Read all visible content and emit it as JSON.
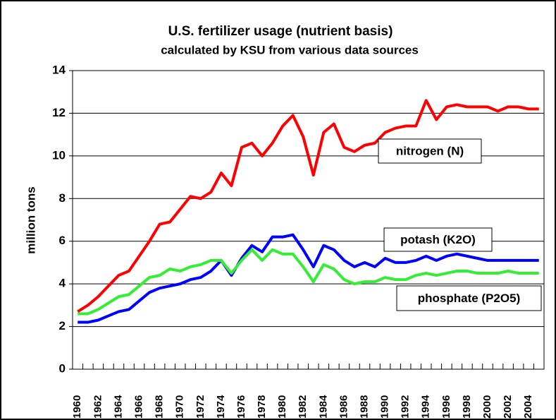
{
  "chart_data": {
    "type": "line",
    "title": "U.S. fertilizer usage (nutrient basis)",
    "subtitle": "calculated by KSU from various data sources",
    "y_label": "million tons",
    "categories": [
      "1960",
      null,
      "1962",
      null,
      "1964",
      null,
      "1966",
      null,
      "1968",
      null,
      "1970",
      null,
      "1972",
      null,
      "1974",
      null,
      "1976",
      null,
      "1978",
      null,
      "1980",
      null,
      "1982",
      null,
      "1984",
      null,
      "1986",
      null,
      "1988",
      null,
      "1990",
      null,
      "1992",
      null,
      "1994",
      null,
      "1996",
      null,
      "1998",
      null,
      "2000",
      null,
      "2002",
      null,
      "2004",
      null
    ],
    "series": [
      {
        "name": "nitrogen (N)",
        "color": "#ff0000",
        "values": [
          2.7,
          3.0,
          3.4,
          3.9,
          4.4,
          4.6,
          5.3,
          6.0,
          6.8,
          6.9,
          7.5,
          8.1,
          8.0,
          8.3,
          9.2,
          8.6,
          10.4,
          10.6,
          10.0,
          10.6,
          11.4,
          11.9,
          10.9,
          9.1,
          11.1,
          11.5,
          10.4,
          10.2,
          10.5,
          10.6,
          11.1,
          11.3,
          11.4,
          11.4,
          12.6,
          11.7,
          12.3,
          12.4,
          12.3,
          12.3,
          12.3,
          12.1,
          12.3,
          12.3,
          12.2,
          12.2
        ]
      },
      {
        "name": "potash (K2O)",
        "color": "#0000ff",
        "values": [
          2.2,
          2.2,
          2.3,
          2.5,
          2.7,
          2.8,
          3.2,
          3.6,
          3.8,
          3.9,
          4.0,
          4.2,
          4.3,
          4.6,
          5.1,
          4.4,
          5.2,
          5.8,
          5.5,
          6.2,
          6.2,
          6.3,
          5.6,
          4.8,
          5.8,
          5.6,
          5.1,
          4.8,
          5.0,
          4.8,
          5.2,
          5.0,
          5.0,
          5.1,
          5.3,
          5.1,
          5.3,
          5.4,
          5.3,
          5.2,
          5.1,
          5.1,
          5.1,
          5.1,
          5.1,
          5.1
        ]
      },
      {
        "name": "phosphate (P2O5)",
        "color": "#33ee33",
        "values": [
          2.6,
          2.6,
          2.8,
          3.1,
          3.4,
          3.5,
          3.9,
          4.3,
          4.4,
          4.7,
          4.6,
          4.8,
          4.9,
          5.1,
          5.1,
          4.5,
          5.1,
          5.6,
          5.1,
          5.6,
          5.4,
          5.4,
          4.8,
          4.1,
          4.9,
          4.7,
          4.2,
          4.0,
          4.1,
          4.1,
          4.3,
          4.2,
          4.2,
          4.4,
          4.5,
          4.4,
          4.5,
          4.6,
          4.6,
          4.5,
          4.5,
          4.5,
          4.6,
          4.5,
          4.5,
          4.5
        ]
      }
    ],
    "ylim": [
      0,
      14
    ],
    "yticks": [
      0,
      2,
      4,
      6,
      8,
      10,
      12,
      14
    ],
    "grid": true
  }
}
